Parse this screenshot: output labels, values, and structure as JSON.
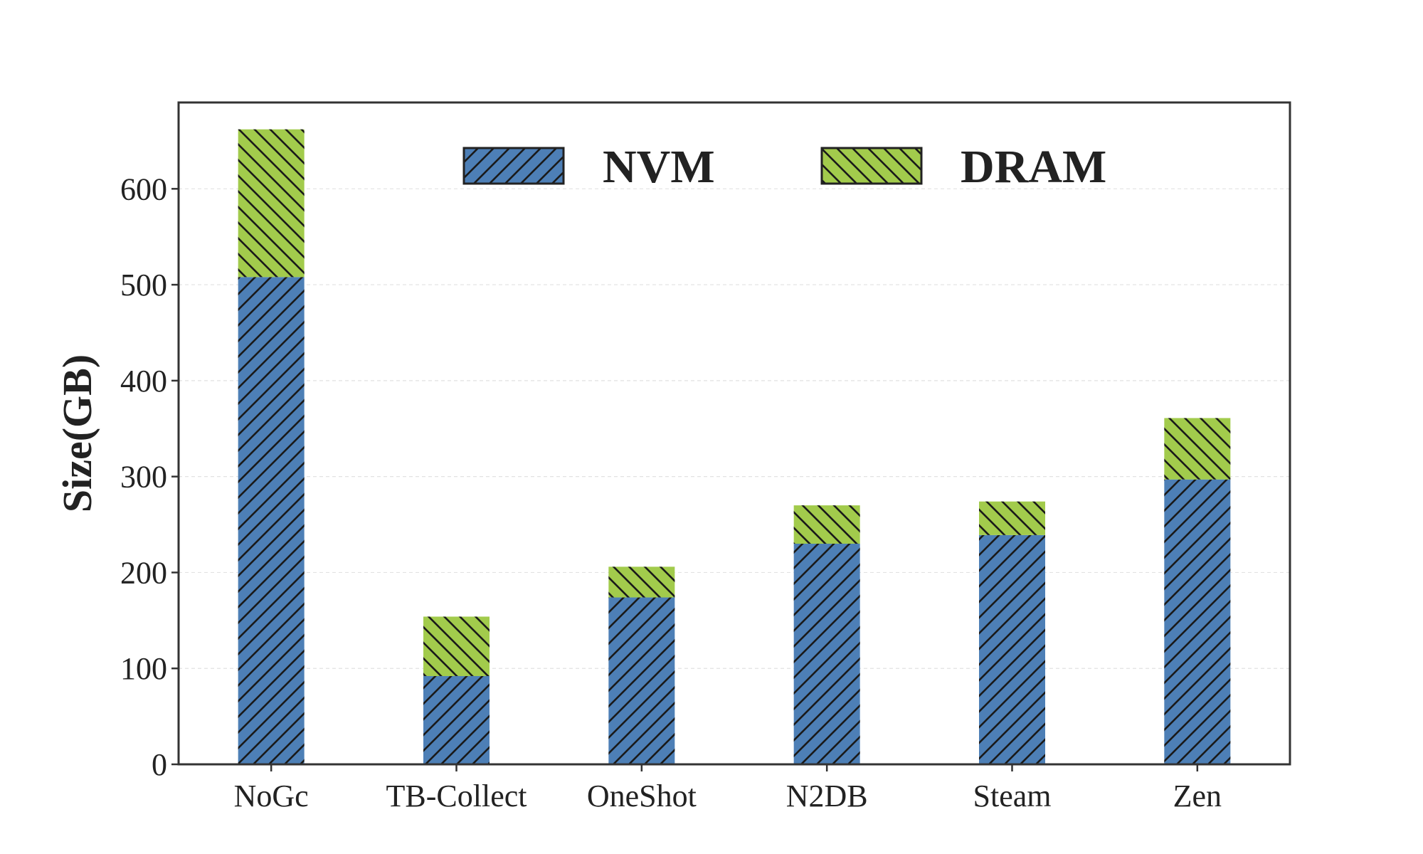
{
  "chart_data": {
    "type": "bar",
    "stacked": true,
    "categories": [
      "NoGc",
      "TB-Collect",
      "OneShot",
      "N2DB",
      "Steam",
      "Zen"
    ],
    "series": [
      {
        "name": "NVM",
        "values": [
          508,
          92,
          174,
          230,
          239,
          297
        ],
        "color": "#4d7fb6",
        "hatch": "forward-diagonal"
      },
      {
        "name": "DRAM",
        "values": [
          154,
          62,
          32,
          40,
          35,
          64
        ],
        "color": "#a2cb4c",
        "hatch": "back-diagonal"
      }
    ],
    "xlabel": "",
    "ylabel": "Size(GB)",
    "ylim": [
      0,
      690
    ],
    "yticks": [
      0,
      100,
      200,
      300,
      400,
      500,
      600
    ],
    "grid": true,
    "legend_position": "top-center"
  }
}
